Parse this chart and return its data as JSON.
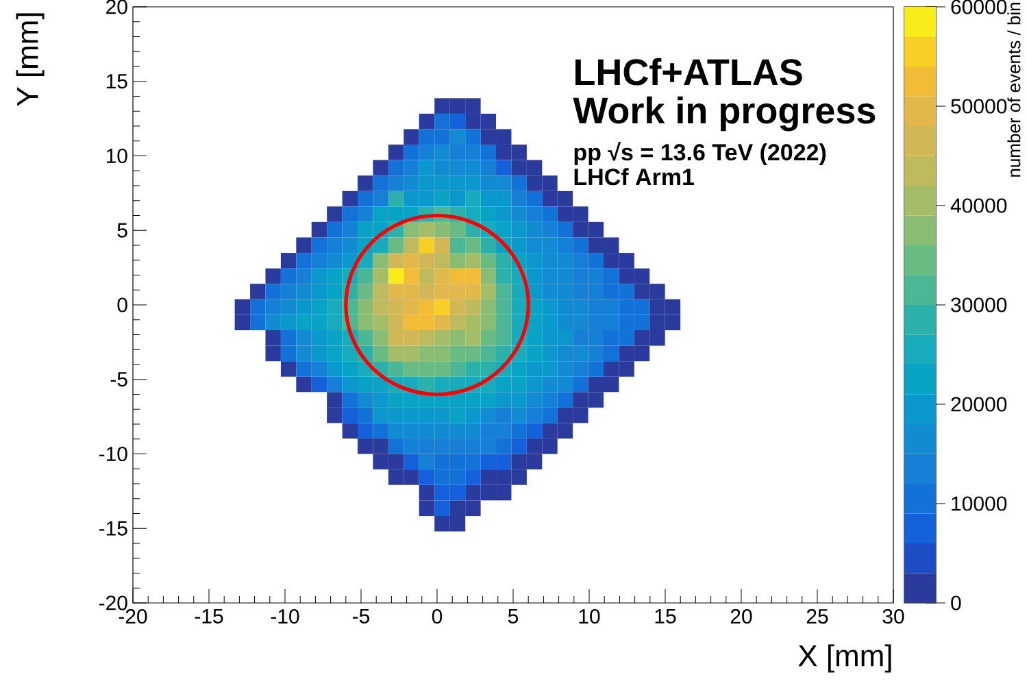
{
  "chart_data": {
    "type": "heatmap",
    "xlabel": "X [mm]",
    "ylabel": "Y [mm]",
    "clabel": "number of events / bin",
    "annotations": [
      "LHCf+ATLAS",
      "Work in progress",
      "pp   √s = 13.6 TeV (2022)",
      "LHCf Arm1"
    ],
    "xlim": [
      -20,
      30
    ],
    "xticks": [
      -20,
      -15,
      -10,
      -5,
      0,
      5,
      10,
      15,
      20,
      25,
      30
    ],
    "ylim": [
      -20,
      20
    ],
    "yticks": [
      -20,
      -15,
      -10,
      -5,
      0,
      5,
      10,
      15,
      20
    ],
    "clim": [
      0,
      60000
    ],
    "cticks": [
      0,
      10000,
      20000,
      30000,
      40000,
      50000,
      60000
    ],
    "x": [
      -12.8,
      -11.79,
      -10.78,
      -9.77,
      -8.76,
      -7.75,
      -6.74,
      -5.73,
      -4.72,
      -3.71,
      -2.7,
      -1.69,
      -0.68,
      0.34,
      1.35,
      2.36,
      3.37,
      4.38,
      5.39,
      6.4,
      7.41,
      8.42,
      9.43,
      10.44,
      11.45,
      12.46,
      13.47,
      14.48,
      15.49
    ],
    "y": [
      13.35,
      12.31,
      11.28,
      10.24,
      9.2,
      8.16,
      7.12,
      6.09,
      5.05,
      4.01,
      2.97,
      1.93,
      0.9,
      -0.14,
      -1.18,
      -2.22,
      -3.26,
      -4.3,
      -5.33,
      -6.37,
      -7.41,
      -8.45,
      -9.49,
      -10.52,
      -11.56,
      -12.6,
      -13.64,
      -14.68
    ],
    "cells": [
      [
        null,
        null,
        null,
        null,
        null,
        null,
        null,
        null,
        null,
        null,
        null,
        null,
        null,
        1500,
        1500,
        1500,
        null,
        null,
        null,
        null,
        null,
        null,
        null,
        null,
        null,
        null,
        null,
        null,
        null
      ],
      [
        null,
        null,
        null,
        null,
        null,
        null,
        null,
        null,
        null,
        null,
        null,
        null,
        1500,
        10500,
        7500,
        1500,
        1500,
        null,
        null,
        null,
        null,
        null,
        null,
        null,
        null,
        null,
        null,
        null,
        null
      ],
      [
        null,
        null,
        null,
        null,
        null,
        null,
        null,
        null,
        null,
        null,
        null,
        1500,
        10500,
        10500,
        16500,
        10500,
        1500,
        1500,
        null,
        null,
        null,
        null,
        null,
        null,
        null,
        null,
        null,
        null,
        null
      ],
      [
        null,
        null,
        null,
        null,
        null,
        null,
        null,
        null,
        null,
        null,
        1500,
        10500,
        13500,
        16500,
        13500,
        13500,
        10500,
        1500,
        1500,
        null,
        null,
        null,
        null,
        null,
        null,
        null,
        null,
        null,
        null
      ],
      [
        null,
        null,
        null,
        null,
        null,
        null,
        null,
        null,
        null,
        1500,
        10500,
        13500,
        19500,
        16500,
        16500,
        16500,
        13500,
        7500,
        1500,
        1500,
        null,
        null,
        null,
        null,
        null,
        null,
        null,
        null,
        null
      ],
      [
        null,
        null,
        null,
        null,
        null,
        null,
        null,
        null,
        1500,
        10500,
        13500,
        16500,
        19500,
        19500,
        19500,
        19500,
        16500,
        16500,
        10500,
        1500,
        1500,
        null,
        null,
        null,
        null,
        null,
        null,
        null,
        null
      ],
      [
        null,
        null,
        null,
        null,
        null,
        null,
        null,
        1500,
        10500,
        13500,
        28500,
        19500,
        19500,
        22500,
        19500,
        25500,
        19500,
        19500,
        13500,
        10500,
        1500,
        1500,
        null,
        null,
        null,
        null,
        null,
        null,
        null
      ],
      [
        null,
        null,
        null,
        null,
        null,
        null,
        1500,
        10500,
        13500,
        22500,
        22500,
        22500,
        28500,
        31500,
        28500,
        25500,
        22500,
        19500,
        16500,
        13500,
        10500,
        1500,
        1500,
        null,
        null,
        null,
        null,
        null,
        null
      ],
      [
        null,
        null,
        null,
        null,
        null,
        1500,
        10500,
        13500,
        22500,
        22500,
        28500,
        37500,
        40500,
        37500,
        34500,
        28500,
        25500,
        22500,
        19500,
        16500,
        13500,
        10500,
        1500,
        1500,
        null,
        null,
        null,
        null,
        null
      ],
      [
        null,
        null,
        null,
        null,
        1500,
        10500,
        13500,
        16500,
        22500,
        25500,
        34500,
        43500,
        55500,
        46500,
        31500,
        34500,
        28500,
        22500,
        19500,
        16500,
        16500,
        13500,
        10500,
        1500,
        1500,
        null,
        null,
        null,
        null
      ],
      [
        null,
        null,
        null,
        1500,
        10500,
        13500,
        16500,
        19500,
        25500,
        37500,
        46500,
        49500,
        46500,
        43500,
        37500,
        40500,
        34500,
        28500,
        22500,
        19500,
        16500,
        16500,
        13500,
        10500,
        1500,
        1500,
        null,
        null,
        null
      ],
      [
        null,
        null,
        1500,
        10500,
        13500,
        19500,
        22500,
        25500,
        31500,
        40500,
        58500,
        52500,
        43500,
        49500,
        52500,
        52500,
        37500,
        28500,
        25500,
        19500,
        16500,
        16500,
        13500,
        13500,
        10500,
        1500,
        1500,
        null,
        null
      ],
      [
        null,
        1500,
        10500,
        13500,
        16500,
        19500,
        22500,
        28500,
        34500,
        43500,
        49500,
        49500,
        46500,
        49500,
        49500,
        49500,
        40500,
        31500,
        25500,
        19500,
        16500,
        16500,
        13500,
        13500,
        10500,
        10500,
        1500,
        1500,
        null
      ],
      [
        1500,
        10500,
        13500,
        16500,
        19500,
        22500,
        25500,
        31500,
        37500,
        43500,
        46500,
        49500,
        52500,
        55500,
        46500,
        43500,
        37500,
        31500,
        25500,
        22500,
        19500,
        16500,
        16500,
        13500,
        13500,
        10500,
        10500,
        1500,
        1500
      ],
      [
        1500,
        10500,
        16500,
        19500,
        22500,
        22500,
        25500,
        31500,
        37500,
        40500,
        46500,
        52500,
        52500,
        49500,
        43500,
        40500,
        37500,
        31500,
        25500,
        22500,
        19500,
        16500,
        16500,
        13500,
        13500,
        10500,
        10500,
        1500,
        1500
      ],
      [
        null,
        null,
        1500,
        10500,
        16500,
        19500,
        22500,
        25500,
        31500,
        37500,
        46500,
        46500,
        43500,
        40500,
        37500,
        40500,
        34500,
        31500,
        25500,
        22500,
        19500,
        19500,
        13500,
        13500,
        10500,
        10500,
        1500,
        1500,
        null
      ],
      [
        null,
        null,
        1500,
        10500,
        16500,
        19500,
        22500,
        25500,
        28500,
        34500,
        40500,
        40500,
        37500,
        37500,
        34500,
        34500,
        31500,
        28500,
        25500,
        22500,
        19500,
        16500,
        16500,
        13500,
        10500,
        1500,
        1500,
        null,
        null
      ],
      [
        null,
        null,
        null,
        1500,
        10500,
        13500,
        19500,
        22500,
        25500,
        28500,
        31500,
        34500,
        34500,
        34500,
        31500,
        28500,
        28500,
        25500,
        22500,
        19500,
        19500,
        16500,
        13500,
        10500,
        1500,
        1500,
        null,
        null,
        null
      ],
      [
        null,
        null,
        null,
        null,
        1500,
        7500,
        13500,
        19500,
        22500,
        22500,
        25500,
        25500,
        28500,
        25500,
        25500,
        25500,
        25500,
        22500,
        22500,
        19500,
        16500,
        16500,
        10500,
        1500,
        1500,
        null,
        null,
        null,
        null
      ],
      [
        null,
        null,
        null,
        null,
        null,
        null,
        1500,
        10500,
        16500,
        19500,
        22500,
        22500,
        22500,
        22500,
        22500,
        22500,
        22500,
        19500,
        19500,
        16500,
        13500,
        10500,
        1500,
        1500,
        null,
        null,
        null,
        null,
        null
      ],
      [
        null,
        null,
        null,
        null,
        null,
        null,
        1500,
        7500,
        10500,
        19500,
        19500,
        19500,
        19500,
        19500,
        22500,
        19500,
        16500,
        13500,
        16500,
        13500,
        10500,
        1500,
        1500,
        null,
        null,
        null,
        null,
        null,
        null
      ],
      [
        null,
        null,
        null,
        null,
        null,
        null,
        null,
        1500,
        7500,
        10500,
        16500,
        16500,
        16500,
        16500,
        16500,
        16500,
        13500,
        13500,
        10500,
        7500,
        1500,
        1500,
        null,
        null,
        null,
        null,
        null,
        null,
        null
      ],
      [
        null,
        null,
        null,
        null,
        null,
        null,
        null,
        null,
        1500,
        1500,
        10500,
        13500,
        13500,
        13500,
        13500,
        13500,
        13500,
        10500,
        7500,
        1500,
        1500,
        null,
        null,
        null,
        null,
        null,
        null,
        null,
        null
      ],
      [
        null,
        null,
        null,
        null,
        null,
        null,
        null,
        null,
        null,
        1500,
        1500,
        7500,
        13500,
        10500,
        10500,
        10500,
        7500,
        7500,
        1500,
        1500,
        null,
        null,
        null,
        null,
        null,
        null,
        null,
        null,
        null
      ],
      [
        null,
        null,
        null,
        null,
        null,
        null,
        null,
        null,
        null,
        null,
        1500,
        1500,
        7500,
        10500,
        10500,
        7500,
        1500,
        1500,
        1500,
        null,
        null,
        null,
        null,
        null,
        null,
        null,
        null,
        null,
        null
      ],
      [
        null,
        null,
        null,
        null,
        null,
        null,
        null,
        null,
        null,
        null,
        null,
        null,
        1500,
        7500,
        7500,
        1500,
        1500,
        1500,
        null,
        null,
        null,
        null,
        null,
        null,
        null,
        null,
        null,
        null,
        null
      ],
      [
        null,
        null,
        null,
        null,
        null,
        null,
        null,
        null,
        null,
        null,
        null,
        null,
        1500,
        7500,
        1500,
        1500,
        null,
        null,
        null,
        null,
        null,
        null,
        null,
        null,
        null,
        null,
        null,
        null,
        null
      ],
      [
        null,
        null,
        null,
        null,
        null,
        null,
        null,
        null,
        null,
        null,
        null,
        null,
        null,
        1500,
        1500,
        null,
        null,
        null,
        null,
        null,
        null,
        null,
        null,
        null,
        null,
        null,
        null,
        null,
        null
      ]
    ]
  }
}
